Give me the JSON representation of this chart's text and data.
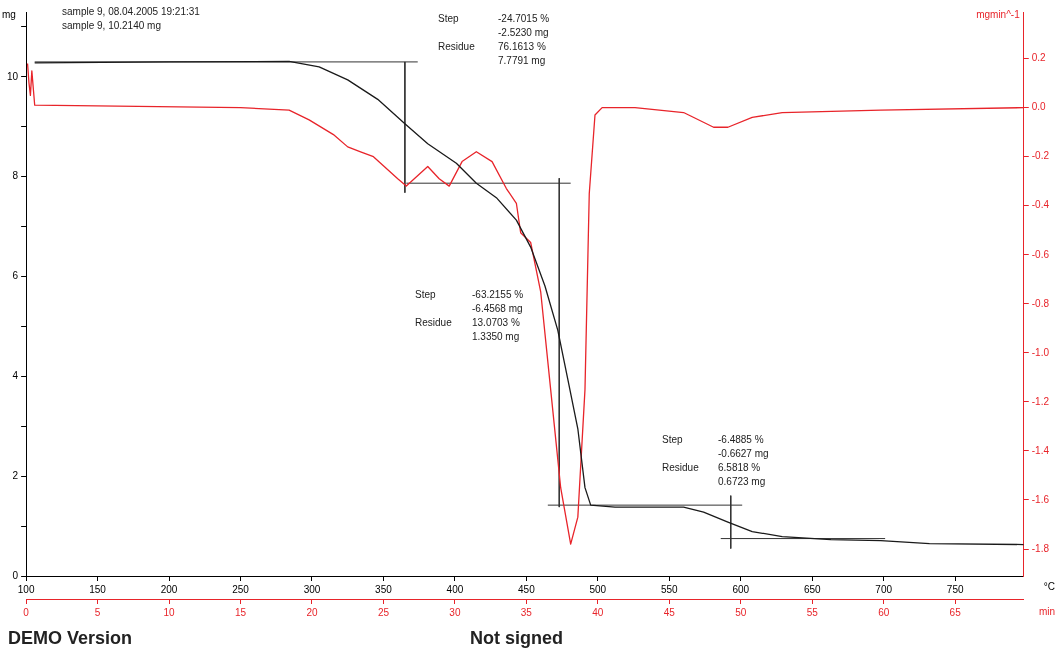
{
  "chart_data": {
    "type": "line",
    "ylabel": "mg",
    "y2label": "mgmin^-1",
    "xlabel": "°C",
    "x2label": "min",
    "annotations": [
      "sample 9, 08.04.2005 19:21:31",
      "sample 9, 10.2140 mg",
      "Step",
      "-24.7015 %",
      "-2.5230 mg",
      "Residue",
      "76.1613 %",
      "7.7791 mg",
      "Step",
      "-63.2155 %",
      "-6.4568 mg",
      "Residue",
      "13.0703 %",
      "1.3350 mg",
      "Step",
      "-6.4885 %",
      "-0.6627 mg",
      "Residue",
      "6.5818 %",
      "0.6723 mg",
      "DEMO Version",
      "Not signed"
    ],
    "xlim": [
      100,
      798
    ],
    "xticks": [
      100,
      150,
      200,
      250,
      300,
      350,
      400,
      450,
      500,
      550,
      600,
      650,
      700,
      750
    ],
    "x2lim": [
      0,
      69.8
    ],
    "x2ticks": [
      0,
      5,
      10,
      15,
      20,
      25,
      30,
      35,
      40,
      45,
      50,
      55,
      60,
      65
    ],
    "ylim": [
      0,
      11.3
    ],
    "yticks": [
      0,
      {
        "value": 1,
        "label": null
      },
      2,
      {
        "value": 3,
        "label": null
      },
      4,
      {
        "value": 5,
        "label": null
      },
      6,
      {
        "value": 7,
        "label": null
      },
      8,
      {
        "value": 9,
        "label": null
      },
      10,
      {
        "value": 11,
        "label": null
      }
    ],
    "y2lim": [
      -1.91,
      0.39
    ],
    "y2ticks": [
      {
        "value": -1.8,
        "label": "-1.8"
      },
      {
        "value": -1.6,
        "label": "-1.6"
      },
      {
        "value": -1.4,
        "label": "-1.4"
      },
      {
        "value": -1.2,
        "label": "-1.2"
      },
      {
        "value": -1,
        "label": "-1.0"
      },
      {
        "value": -0.8,
        "label": "-0.8"
      },
      {
        "value": -0.6,
        "label": "-0.6"
      },
      {
        "value": -0.4,
        "label": "-0.4"
      },
      {
        "value": -0.2,
        "label": "-0.2"
      },
      {
        "value": 0,
        "label": "0.0"
      },
      {
        "value": 0.2,
        "label": "0.2"
      }
    ],
    "grid": false,
    "legend": false,
    "marker": "none",
    "line_style": "solid",
    "series": [
      {
        "type": "line",
        "color": "#1a1a1a",
        "x": [
          106,
          200,
          284,
          305,
          325,
          346,
          365,
          381,
          401,
          415,
          429,
          443,
          453,
          463,
          472,
          479,
          486,
          491,
          495,
          512,
          560,
          574,
          591,
          608,
          629,
          663,
          698,
          732,
          798
        ],
        "values": [
          10.28,
          10.3,
          10.31,
          10.2,
          9.94,
          9.55,
          9.06,
          8.66,
          8.27,
          7.87,
          7.58,
          7.13,
          6.59,
          5.81,
          4.92,
          3.94,
          2.95,
          1.77,
          1.42,
          1.38,
          1.38,
          1.28,
          1.08,
          0.89,
          0.79,
          0.73,
          0.71,
          0.65,
          0.63
        ]
      },
      {
        "type": "line",
        "axis": "y2",
        "color": "#e8242a",
        "x": [
          101,
          102,
          103,
          104,
          106,
          250,
          284,
          298,
          315,
          325,
          334,
          343,
          360,
          366,
          381,
          389,
          396,
          405,
          415,
          426,
          436,
          443,
          446,
          453,
          460,
          467,
          474,
          481,
          486,
          491,
          494,
          498,
          503,
          526,
          560,
          581,
          591,
          608,
          629,
          698,
          798
        ],
        "values": [
          0.18,
          0.1,
          0.05,
          0.15,
          0.01,
          0,
          -0.01,
          -0.05,
          -0.11,
          -0.16,
          -0.18,
          -0.2,
          -0.29,
          -0.32,
          -0.24,
          -0.29,
          -0.32,
          -0.22,
          -0.18,
          -0.22,
          -0.33,
          -0.39,
          -0.51,
          -0.55,
          -0.75,
          -1.15,
          -1.55,
          -1.78,
          -1.67,
          -1.15,
          -0.35,
          -0.03,
          0,
          0,
          -0.02,
          -0.08,
          -0.08,
          -0.04,
          -0.02,
          -0.01,
          0
        ]
      },
      {
        "type": "line",
        "color": "#333333",
        "x": [
          106,
          374
        ],
        "values": [
          10.3,
          10.3
        ]
      },
      {
        "type": "line",
        "color": "#333333",
        "x": [
          365,
          365
        ],
        "values": [
          10.3,
          7.68
        ]
      },
      {
        "type": "line",
        "color": "#333333",
        "x": [
          366,
          481
        ],
        "values": [
          7.87,
          7.87
        ]
      },
      {
        "type": "line",
        "color": "#333333",
        "x": [
          473,
          473
        ],
        "values": [
          7.97,
          1.38
        ]
      },
      {
        "type": "line",
        "color": "#333333",
        "x": [
          465,
          601
        ],
        "values": [
          1.42,
          1.42
        ]
      },
      {
        "type": "line",
        "color": "#333333",
        "x": [
          593,
          593
        ],
        "values": [
          1.61,
          0.55
        ]
      },
      {
        "type": "line",
        "color": "#333333",
        "x": [
          586,
          701
        ],
        "values": [
          0.75,
          0.75
        ]
      }
    ]
  }
}
